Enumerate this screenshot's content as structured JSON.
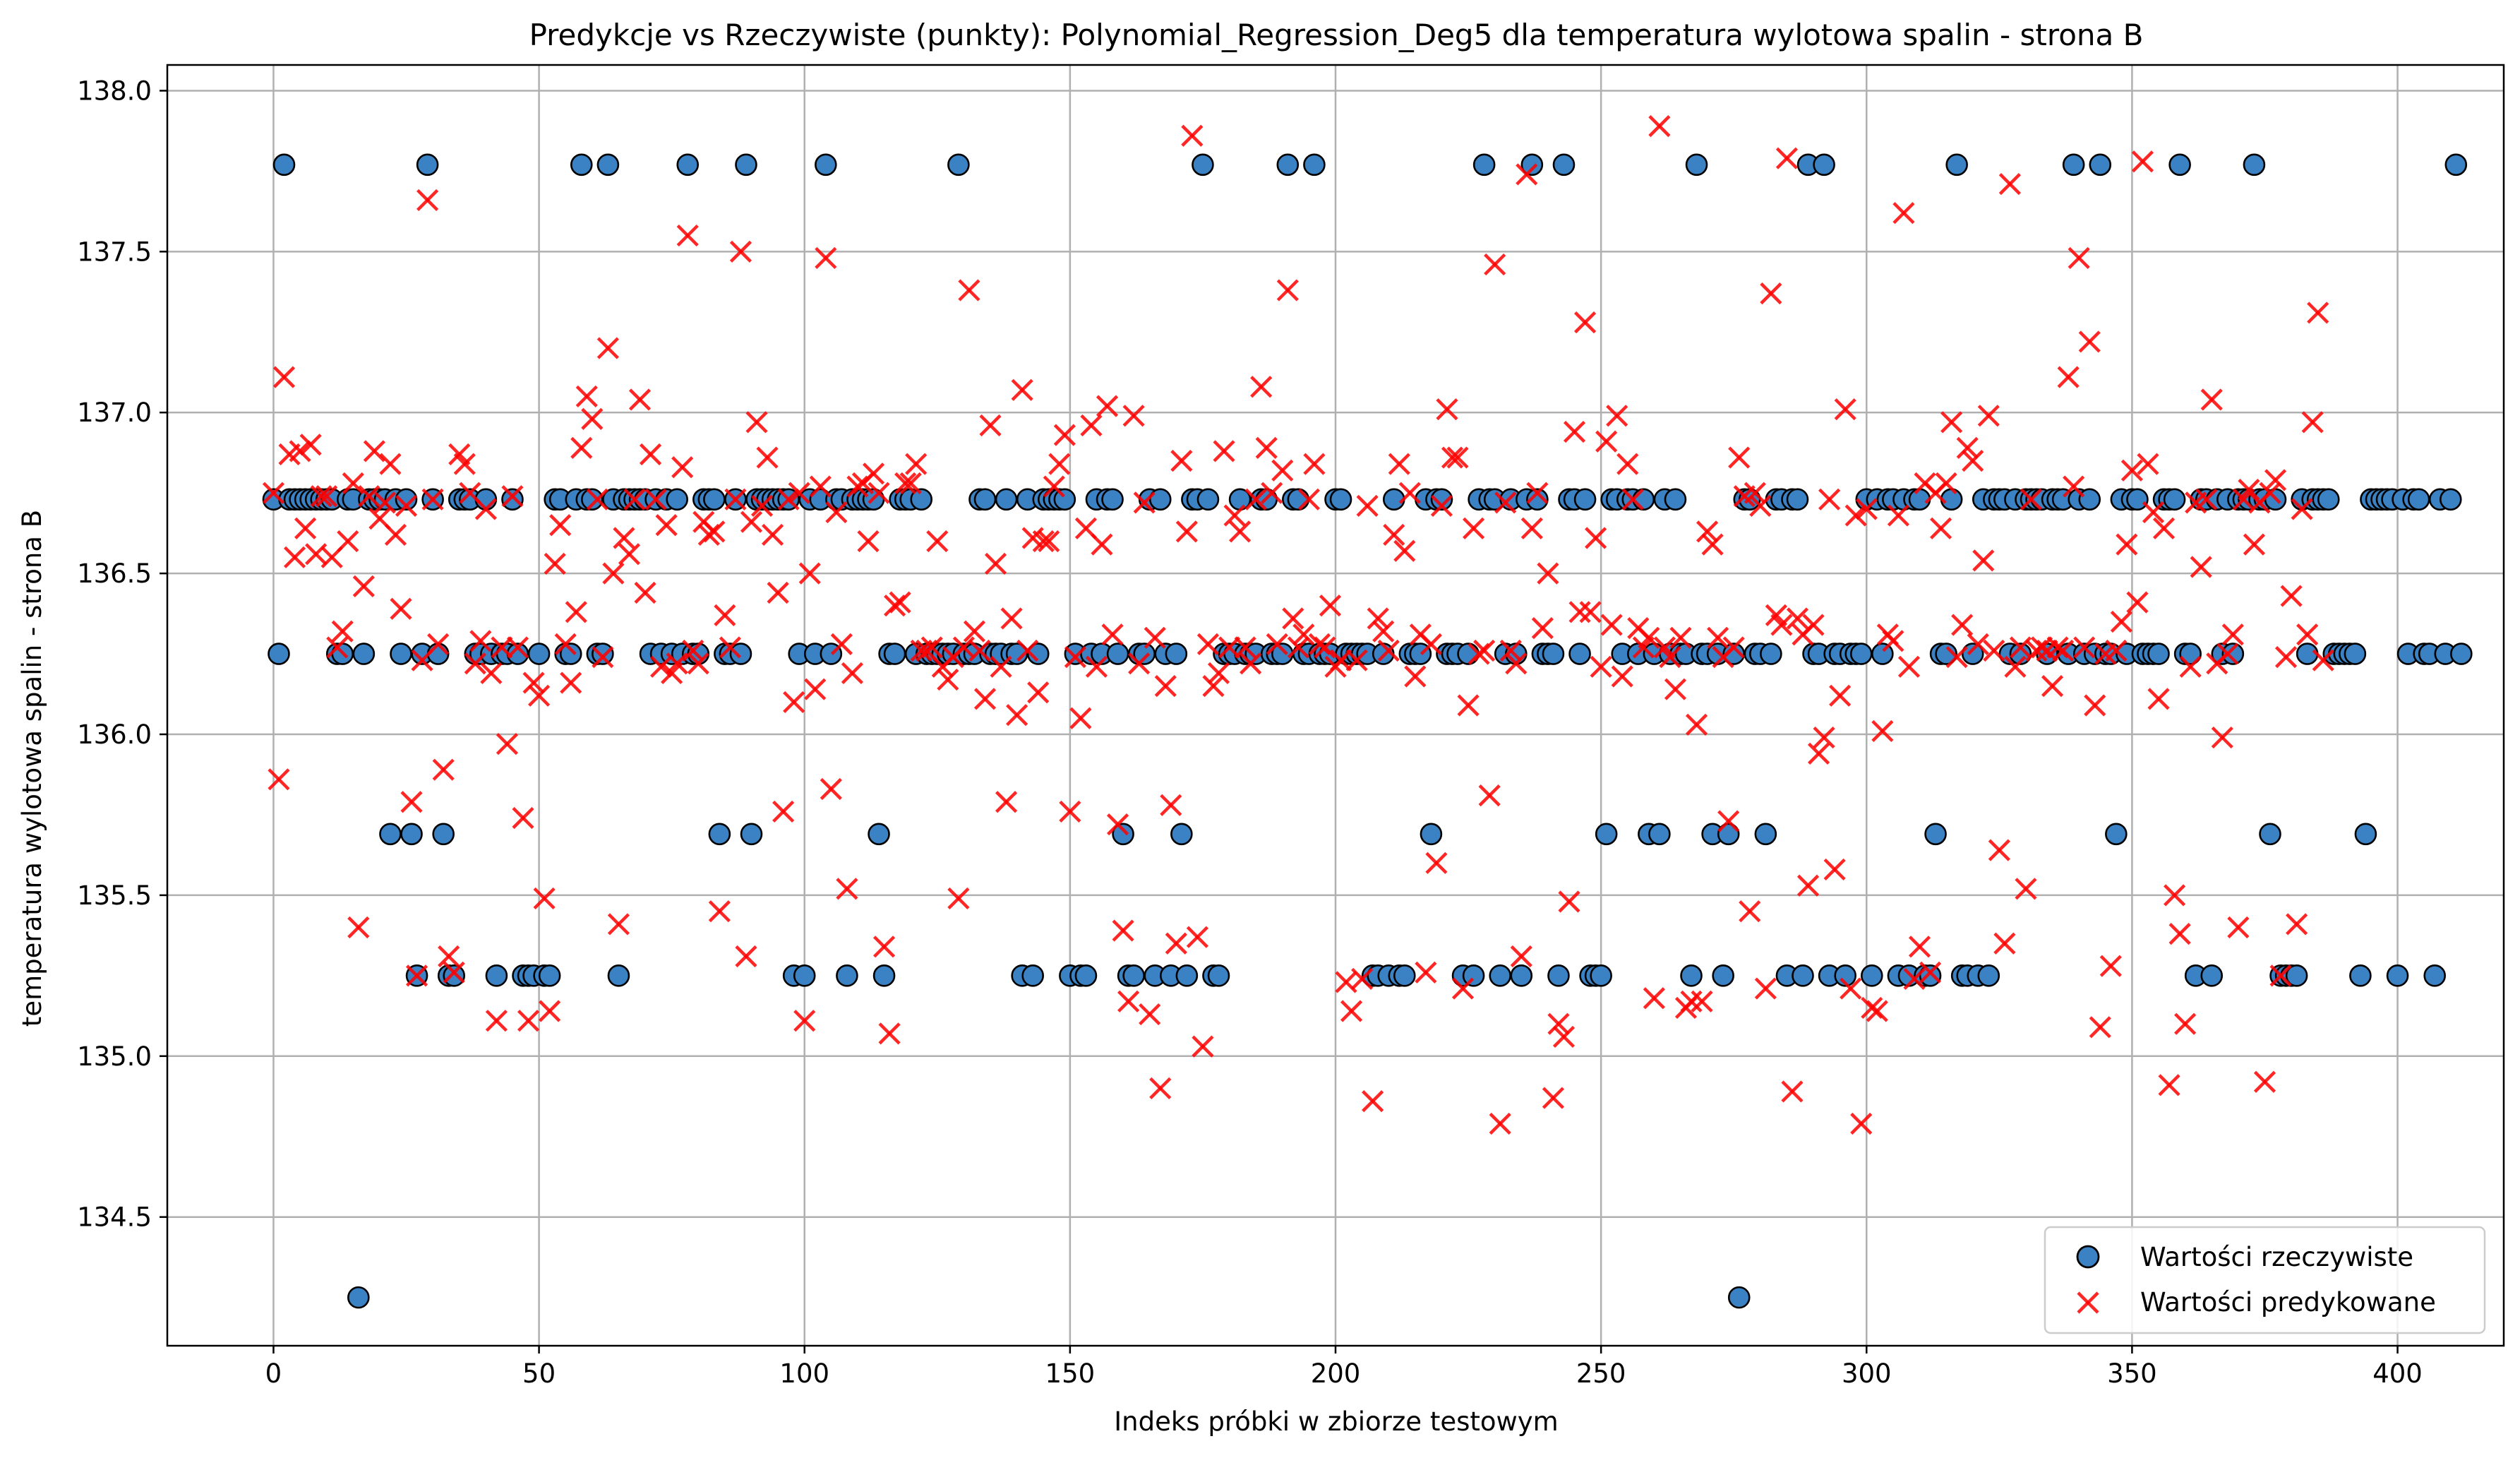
{
  "chart_data": {
    "type": "scatter",
    "title": "Predykcje vs Rzeczywiste (punkty): Polynomial_Regression_Deg5 dla temperatura wylotowa spalin - strona B",
    "xlabel": "Indeks próbki w zbiorze testowym",
    "ylabel": "temperatura wylotowa spalin - strona B",
    "xlim": [
      -20,
      420
    ],
    "ylim": [
      134.1,
      138.08
    ],
    "x_ticks": [
      0,
      50,
      100,
      150,
      200,
      250,
      300,
      350,
      400
    ],
    "y_ticks": [
      134.5,
      135.0,
      135.5,
      136.0,
      136.5,
      137.0,
      137.5,
      138.0
    ],
    "x_tick_labels": [
      "0",
      "50",
      "100",
      "150",
      "200",
      "250",
      "300",
      "350",
      "400"
    ],
    "y_tick_labels": [
      "134.5",
      "135.0",
      "135.5",
      "136.0",
      "136.5",
      "137.0",
      "137.5",
      "138.0"
    ],
    "grid": true,
    "legend_position": "lower-right",
    "series": [
      {
        "name": "Wartości rzeczywiste",
        "marker": "circle",
        "color": "#3b82c4",
        "edge_color": "#000000",
        "values": [
          136.73,
          136.25,
          137.77,
          136.73,
          136.73,
          136.73,
          136.73,
          136.73,
          136.73,
          136.73,
          136.73,
          136.73,
          136.25,
          136.25,
          136.73,
          136.73,
          134.25,
          136.25,
          136.73,
          136.73,
          136.73,
          136.73,
          135.69,
          136.73,
          136.25,
          136.73,
          135.69,
          135.25,
          136.25,
          137.77,
          136.73,
          136.25,
          135.69,
          135.25,
          135.25,
          136.73,
          136.73,
          136.73,
          136.25,
          136.25,
          136.73,
          136.25,
          135.25,
          136.25,
          136.25,
          136.73,
          136.25,
          135.25,
          135.25,
          135.25,
          136.25,
          135.25,
          135.25,
          136.73,
          136.73,
          136.25,
          136.25,
          136.73,
          137.77,
          136.73,
          136.73,
          136.25,
          136.25,
          137.77,
          136.73,
          135.25,
          136.73,
          136.73,
          136.73,
          136.73,
          136.73,
          136.25,
          136.73,
          136.25,
          136.73,
          136.25,
          136.73,
          136.25,
          137.77,
          136.25,
          136.25,
          136.73,
          136.73,
          136.73,
          135.69,
          136.25,
          136.25,
          136.73,
          136.25,
          137.77,
          135.69,
          136.73,
          136.73,
          136.73,
          136.73,
          136.73,
          136.73,
          136.73,
          135.25,
          136.25,
          135.25,
          136.73,
          136.25,
          136.73,
          137.77,
          136.25,
          136.73,
          136.73,
          135.25,
          136.73,
          136.73,
          136.73,
          136.73,
          136.73,
          135.69,
          135.25,
          136.25,
          136.25,
          136.73,
          136.73,
          136.73,
          136.25,
          136.73,
          136.25,
          136.25,
          136.25,
          136.25,
          136.25,
          136.25,
          137.77,
          136.25,
          136.25,
          136.25,
          136.73,
          136.73,
          136.25,
          136.25,
          136.25,
          136.73,
          136.25,
          136.25,
          135.25,
          136.73,
          135.25,
          136.25,
          136.73,
          136.73,
          136.73,
          136.73,
          136.73,
          135.25,
          136.25,
          135.25,
          135.25,
          136.25,
          136.73,
          136.25,
          136.73,
          136.73,
          136.25,
          135.69,
          135.25,
          135.25,
          136.25,
          136.25,
          136.73,
          135.25,
          136.73,
          136.25,
          135.25,
          136.25,
          135.69,
          135.25,
          136.73,
          136.73,
          137.77,
          136.73,
          135.25,
          135.25,
          136.25,
          136.25,
          136.25,
          136.73,
          136.25,
          136.25,
          136.25,
          136.73,
          136.73,
          136.25,
          136.25,
          136.25,
          137.77,
          136.73,
          136.73,
          136.25,
          136.25,
          137.77,
          136.25,
          136.25,
          136.25,
          136.73,
          136.73,
          136.25,
          136.25,
          136.25,
          136.25,
          136.25,
          135.25,
          135.25,
          136.25,
          135.25,
          136.73,
          135.25,
          135.25,
          136.25,
          136.25,
          136.25,
          136.73,
          135.69,
          136.73,
          136.73,
          136.25,
          136.25,
          136.25,
          135.25,
          136.25,
          135.25,
          136.73,
          137.77,
          136.73,
          136.73,
          135.25,
          136.25,
          136.73,
          136.25,
          135.25,
          136.73,
          137.77,
          136.73,
          136.25,
          136.25,
          136.25,
          135.25,
          137.77,
          136.73,
          136.73,
          136.25,
          136.73,
          135.25,
          135.25,
          135.25,
          135.69,
          136.73,
          136.73,
          136.25,
          136.73,
          136.73,
          136.25,
          136.73,
          135.69,
          136.25,
          135.69,
          136.73,
          136.25,
          136.73,
          136.25,
          136.25,
          135.25,
          137.77,
          136.25,
          136.25,
          135.69,
          136.25,
          135.25,
          135.69,
          136.25,
          134.25,
          136.73,
          136.73,
          136.25,
          136.25,
          135.69,
          136.25,
          136.73,
          136.73,
          135.25,
          136.73,
          136.73,
          135.25,
          137.77,
          136.25,
          136.25,
          137.77,
          135.25,
          136.25,
          136.25,
          135.25,
          136.25,
          136.25,
          136.25,
          136.73,
          135.25,
          136.73,
          136.25,
          136.73,
          136.73,
          135.25,
          136.73,
          135.25,
          136.73,
          136.73,
          135.25,
          135.25,
          135.69,
          136.25,
          136.25,
          136.73,
          137.77,
          135.25,
          135.25,
          136.25,
          135.25,
          136.73,
          135.25,
          136.73,
          136.73,
          136.73,
          136.25,
          136.73,
          136.25,
          136.73,
          136.73,
          136.73,
          136.73,
          136.25,
          136.73,
          136.73,
          136.73,
          136.25,
          137.77,
          136.73,
          136.25,
          136.73,
          136.25,
          137.77,
          136.25,
          136.25,
          135.69,
          136.73,
          136.25,
          136.73,
          136.73,
          136.25,
          136.25,
          136.25,
          136.25,
          136.73,
          136.73,
          136.73,
          137.77,
          136.25,
          136.25,
          135.25,
          136.73,
          136.73,
          135.25,
          136.73,
          136.25,
          136.73,
          136.25,
          136.73,
          136.73,
          136.73,
          137.77,
          136.73,
          136.73,
          135.69,
          136.73,
          135.25,
          135.25,
          135.25,
          135.25,
          136.73,
          136.25,
          136.73,
          136.73,
          136.73,
          136.73,
          136.25,
          136.25,
          136.25,
          136.25,
          136.25,
          135.25,
          135.69,
          136.73,
          136.73,
          136.73,
          136.73,
          136.73,
          135.25,
          136.73,
          136.25,
          136.73,
          136.73,
          136.25,
          136.25,
          135.25,
          136.73,
          136.25,
          136.73,
          137.77,
          136.25
        ]
      },
      {
        "name": "Wartości predykowane",
        "marker": "x",
        "color": "#ff0000",
        "values": [
          136.75,
          135.86,
          137.11,
          136.87,
          136.55,
          136.88,
          136.64,
          136.9,
          136.56,
          136.74,
          136.74,
          136.55,
          136.27,
          136.32,
          136.6,
          136.78,
          135.4,
          136.46,
          136.74,
          136.88,
          136.67,
          136.72,
          136.84,
          136.62,
          136.39,
          136.71,
          135.79,
          135.25,
          136.23,
          137.66,
          136.73,
          136.28,
          135.89,
          135.31,
          135.26,
          136.87,
          136.84,
          136.75,
          136.22,
          136.29,
          136.7,
          136.19,
          135.11,
          136.27,
          135.97,
          136.74,
          136.27,
          135.74,
          135.11,
          136.16,
          136.12,
          135.49,
          135.14,
          136.53,
          136.65,
          136.28,
          136.16,
          136.38,
          136.89,
          137.05,
          136.98,
          136.73,
          136.24,
          137.2,
          136.5,
          135.41,
          136.61,
          136.56,
          136.73,
          137.04,
          136.44,
          136.87,
          136.73,
          136.21,
          136.65,
          136.19,
          136.22,
          136.83,
          137.55,
          136.26,
          136.22,
          136.66,
          136.62,
          136.63,
          135.45,
          136.37,
          136.27,
          136.73,
          137.5,
          135.31,
          136.66,
          136.97,
          136.71,
          136.86,
          136.62,
          136.44,
          135.76,
          136.73,
          136.1,
          136.75,
          135.11,
          136.5,
          136.14,
          136.77,
          137.48,
          135.83,
          136.69,
          136.28,
          135.52,
          136.19,
          136.77,
          136.78,
          136.6,
          136.81,
          136.75,
          135.34,
          135.07,
          136.4,
          136.41,
          136.78,
          136.78,
          136.84,
          136.26,
          136.26,
          136.27,
          136.6,
          136.21,
          136.17,
          136.24,
          135.49,
          136.27,
          137.38,
          136.32,
          136.26,
          136.11,
          136.96,
          136.53,
          136.21,
          135.79,
          136.36,
          136.06,
          137.07,
          136.26,
          136.61,
          136.13,
          136.6,
          136.6,
          136.77,
          136.84,
          136.93,
          135.76,
          136.24,
          136.05,
          136.64,
          136.96,
          136.21,
          136.59,
          137.02,
          136.31,
          135.72,
          135.39,
          135.17,
          136.99,
          136.22,
          136.72,
          135.13,
          136.3,
          134.9,
          136.15,
          135.78,
          135.35,
          136.85,
          136.63,
          137.86,
          135.37,
          135.03,
          136.28,
          136.15,
          136.19,
          136.88,
          136.27,
          136.68,
          136.63,
          136.27,
          136.22,
          136.73,
          137.08,
          136.89,
          136.75,
          136.28,
          136.82,
          137.38,
          136.36,
          136.27,
          136.31,
          136.73,
          136.84,
          136.28,
          136.27,
          136.4,
          136.21,
          136.23,
          135.23,
          135.14,
          136.23,
          135.24,
          136.71,
          134.86,
          136.36,
          136.32,
          136.26,
          136.62,
          136.84,
          136.57,
          136.75,
          136.18,
          136.31,
          135.26,
          136.28,
          135.6,
          136.71,
          137.01,
          136.86,
          136.86,
          135.21,
          136.09,
          136.64,
          136.25,
          136.26,
          135.81,
          137.46,
          134.79,
          136.72,
          136.26,
          136.22,
          135.31,
          137.74,
          136.64,
          136.75,
          136.33,
          136.5,
          134.87,
          135.1,
          135.06,
          135.48,
          136.94,
          136.38,
          137.28,
          136.38,
          136.61,
          136.21,
          136.91,
          136.34,
          136.99,
          136.18,
          136.84,
          136.73,
          136.33,
          136.27,
          136.3,
          135.18,
          137.89,
          136.27,
          136.24,
          136.14,
          136.3,
          135.15,
          135.17,
          136.03,
          135.17,
          136.63,
          136.59,
          136.3,
          136.24,
          135.73,
          136.27,
          136.86,
          136.74,
          135.45,
          136.75,
          136.71,
          135.21,
          137.37,
          136.37,
          136.34,
          137.79,
          134.89,
          136.36,
          136.31,
          135.53,
          136.34,
          135.94,
          135.99,
          136.73,
          135.58,
          136.12,
          137.01,
          135.21,
          136.68,
          134.79,
          136.7,
          135.15,
          135.14,
          136.01,
          136.31,
          136.29,
          136.68,
          137.62,
          136.21,
          135.24,
          135.34,
          136.78,
          135.26,
          136.75,
          136.64,
          136.78,
          136.97,
          136.24,
          136.34,
          136.89,
          136.85,
          136.28,
          136.54,
          136.99,
          136.26,
          135.64,
          135.35,
          137.71,
          136.21,
          136.27,
          135.52,
          136.73,
          136.26,
          136.27,
          136.26,
          136.15,
          136.27,
          136.26,
          137.11,
          136.77,
          137.48,
          136.27,
          137.22,
          136.09,
          135.09,
          136.25,
          135.28,
          136.26,
          136.35,
          136.59,
          136.82,
          136.41,
          137.78,
          136.84,
          136.69,
          136.11,
          136.64,
          134.91,
          135.5,
          135.38,
          135.1,
          136.21,
          136.72,
          136.52,
          136.73,
          137.04,
          136.22,
          135.99,
          136.25,
          136.31,
          135.4,
          136.73,
          136.76,
          136.59,
          136.72,
          134.92,
          136.75,
          136.79,
          135.25,
          136.24,
          136.43,
          135.41,
          136.7,
          136.31,
          136.97,
          137.31,
          136.23
        ]
      }
    ]
  }
}
